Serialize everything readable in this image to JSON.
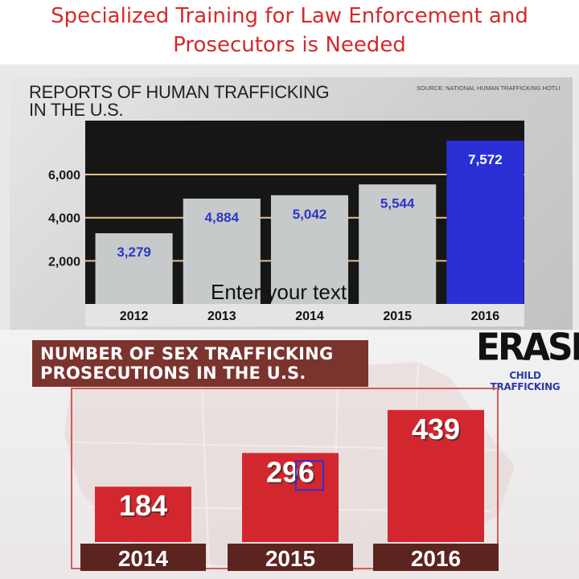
{
  "headline": {
    "line1": "Specialized Training for Law Enforcement and",
    "line2": "Prosecutors is Needed"
  },
  "logo": {
    "word": "ERASE",
    "subtitle": "CHILD TRAFFICKING"
  },
  "overlay_text": "Enter your text",
  "colors": {
    "headline": "#d42a2a",
    "bar_grey": "#c7cacb",
    "bar_highlight": "#2a2fd6",
    "bar_red": "#d3272f",
    "year_band": "#5c241f",
    "title_box": "#7b332e"
  },
  "chart_data": [
    {
      "type": "bar",
      "title_line1": "REPORTS OF HUMAN TRAFFICKING",
      "title_line2": "IN THE U.S.",
      "source": "SOURCE: NATIONAL HUMAN TRAFFICKING HOTLI",
      "categories": [
        "2012",
        "2013",
        "2014",
        "2015",
        "2016"
      ],
      "values": [
        3279,
        4884,
        5042,
        5544,
        7572
      ],
      "value_labels": [
        "3,279",
        "4,884",
        "5,042",
        "5,544",
        "7,572"
      ],
      "yticks": [
        2000,
        4000,
        6000
      ],
      "ytick_labels": [
        "2,000",
        "4,000",
        "6,000"
      ],
      "ylim": [
        0,
        8500
      ],
      "highlight_index": 4,
      "grid": true
    },
    {
      "type": "bar",
      "title_line1": "NUMBER OF SEX TRAFFICKING",
      "title_line2": "PROSECUTIONS IN THE U.S.",
      "categories": [
        "2014",
        "2015",
        "2016"
      ],
      "values": [
        184,
        296,
        439
      ],
      "value_labels": [
        "184",
        "296",
        "439"
      ],
      "ylim": [
        0,
        460
      ]
    }
  ]
}
